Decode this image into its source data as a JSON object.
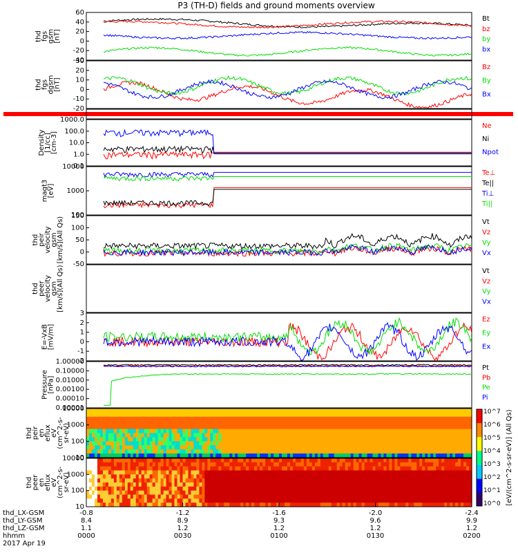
{
  "title": "P3 (TH-D) fields and ground moments overview",
  "colors": {
    "black": "#000000",
    "red": "#ff0000",
    "green": "#00dd00",
    "blue": "#0000ff"
  },
  "time_axis": {
    "ticks": [
      "0000",
      "0030",
      "0100",
      "0130",
      "0200"
    ],
    "date": "2017 Apr 19",
    "rows": [
      {
        "label": "thd_LX-GSM",
        "values": [
          "-0.8",
          "-1.2",
          "-1.6",
          "-2.0",
          "-2.4"
        ]
      },
      {
        "label": "thd_LY-GSM",
        "values": [
          "8.4",
          "8.9",
          "9.3",
          "9.6",
          "9.9"
        ]
      },
      {
        "label": "thd_LZ-GSM",
        "values": [
          "1.1",
          "1.2",
          "1.2",
          "1.2",
          "1.2"
        ]
      },
      {
        "label": "hhmm",
        "values": [
          "0000",
          "0030",
          "0100",
          "0130",
          "0200"
        ]
      }
    ]
  },
  "colorbar_label": "[eV/(cm^2-s-sr-eV)] (All Qs)",
  "colorbar_ticks": [
    "10^7",
    "10^6",
    "10^5",
    "10^4",
    "10^3",
    "10^2",
    "10^1",
    "10^0"
  ],
  "chart_data": [
    {
      "type": "line",
      "ylabel": [
        "thd",
        "fgs",
        "gsm",
        "[nT]"
      ],
      "ylim": [
        -40,
        60
      ],
      "yticks": [
        "60",
        "40",
        "20",
        "0",
        "-20",
        "-40"
      ],
      "series": [
        {
          "name": "Bt",
          "color": "#000000"
        },
        {
          "name": "bz",
          "color": "#ff0000"
        },
        {
          "name": "by",
          "color": "#00dd00"
        },
        {
          "name": "bx",
          "color": "#0000ff"
        }
      ]
    },
    {
      "type": "line",
      "ylabel": [
        "thd",
        "fgs",
        "dgsm",
        "[nT]"
      ],
      "ylim": [
        -20,
        30
      ],
      "yticks": [
        "30",
        "20",
        "10",
        "0",
        "-10",
        "-20"
      ],
      "series": [
        {
          "name": "Bz",
          "color": "#ff0000"
        },
        {
          "name": "By",
          "color": "#00dd00"
        },
        {
          "name": "Bx",
          "color": "#0000ff"
        }
      ]
    },
    {
      "type": "flag",
      "ylabel": [],
      "yticks": [],
      "series": []
    },
    {
      "type": "line",
      "ylabel": [
        "Density",
        "[1/cc]",
        "[cm-3]"
      ],
      "ylim": [
        0.1,
        1000
      ],
      "yticks": [
        "1000.0",
        "100.0",
        "10.0",
        "1.0",
        "0.1"
      ],
      "series": [
        {
          "name": "Ne",
          "color": "#ff0000"
        },
        {
          "name": "Ni",
          "color": "#000000"
        },
        {
          "name": "Npot",
          "color": "#0000ff"
        }
      ]
    },
    {
      "type": "line",
      "ylabel": [
        "magt3",
        "[eV]"
      ],
      "ylim": [
        30,
        10000
      ],
      "yticks": [
        "10000",
        "1000",
        "100"
      ],
      "series": [
        {
          "name": "Te⊥",
          "color": "#ff0000"
        },
        {
          "name": "Te||",
          "color": "#000000"
        },
        {
          "name": "Ti⊥",
          "color": "#0000ff"
        },
        {
          "name": "Ti||",
          "color": "#00dd00"
        }
      ]
    },
    {
      "type": "line",
      "ylabel": [
        "thd",
        "peir",
        "velocity",
        "gsm",
        "[km/s](All Qs)"
      ],
      "ylim": [
        -50,
        150
      ],
      "yticks": [
        "150",
        "100",
        "50",
        "0",
        "-50"
      ],
      "series": [
        {
          "name": "Vt",
          "color": "#000000"
        },
        {
          "name": "Vz",
          "color": "#ff0000"
        },
        {
          "name": "Vy",
          "color": "#00dd00"
        },
        {
          "name": "Vx",
          "color": "#0000ff"
        }
      ]
    },
    {
      "type": "line",
      "ylabel": [
        "thd",
        "peer",
        "velocity",
        "gsm",
        "[km/s](All Qs)"
      ],
      "ylim": [
        0,
        1
      ],
      "yticks": [],
      "series": [
        {
          "name": "Vt",
          "color": "#000000"
        },
        {
          "name": "Vz",
          "color": "#ff0000"
        },
        {
          "name": "Vy",
          "color": "#00dd00"
        },
        {
          "name": "Vx",
          "color": "#0000ff"
        }
      ]
    },
    {
      "type": "line",
      "ylabel": [
        "E=-VxB",
        "[mV/m]"
      ],
      "ylim": [
        -2,
        3
      ],
      "yticks": [
        "3",
        "2",
        "1",
        "0",
        "-1",
        "-2"
      ],
      "series": [
        {
          "name": "Ez",
          "color": "#ff0000"
        },
        {
          "name": "Ey",
          "color": "#00dd00"
        },
        {
          "name": "Ex",
          "color": "#0000ff"
        }
      ]
    },
    {
      "type": "line",
      "ylabel": [
        "Pressure",
        "[nPa]"
      ],
      "ylim": [
        1e-05,
        3
      ],
      "yticks": [
        "1.00000",
        "0.10000",
        "0.01000",
        "0.00100",
        "0.00010",
        "0.00001"
      ],
      "series": [
        {
          "name": "Pt",
          "color": "#000000"
        },
        {
          "name": "Pb",
          "color": "#ff0000"
        },
        {
          "name": "Pe",
          "color": "#00dd00"
        },
        {
          "name": "Pi",
          "color": "#0000ff"
        }
      ]
    },
    {
      "type": "heatmap",
      "ylabel": [
        "thd",
        "peir",
        "en",
        "eflux",
        "eV",
        "(cm^2-s-",
        "sr-eV)"
      ],
      "ylim": [
        5,
        30000
      ],
      "yticks": [
        "10000",
        "1000",
        "100",
        "10"
      ],
      "series": []
    },
    {
      "type": "heatmap",
      "ylabel": [
        "thd",
        "peer",
        "en",
        "eflux",
        "eV",
        "(cm^2-s-",
        "sr-eV)"
      ],
      "ylim": [
        5,
        30000
      ],
      "yticks": [
        "10000",
        "1000",
        "100",
        "10"
      ],
      "series": []
    }
  ]
}
